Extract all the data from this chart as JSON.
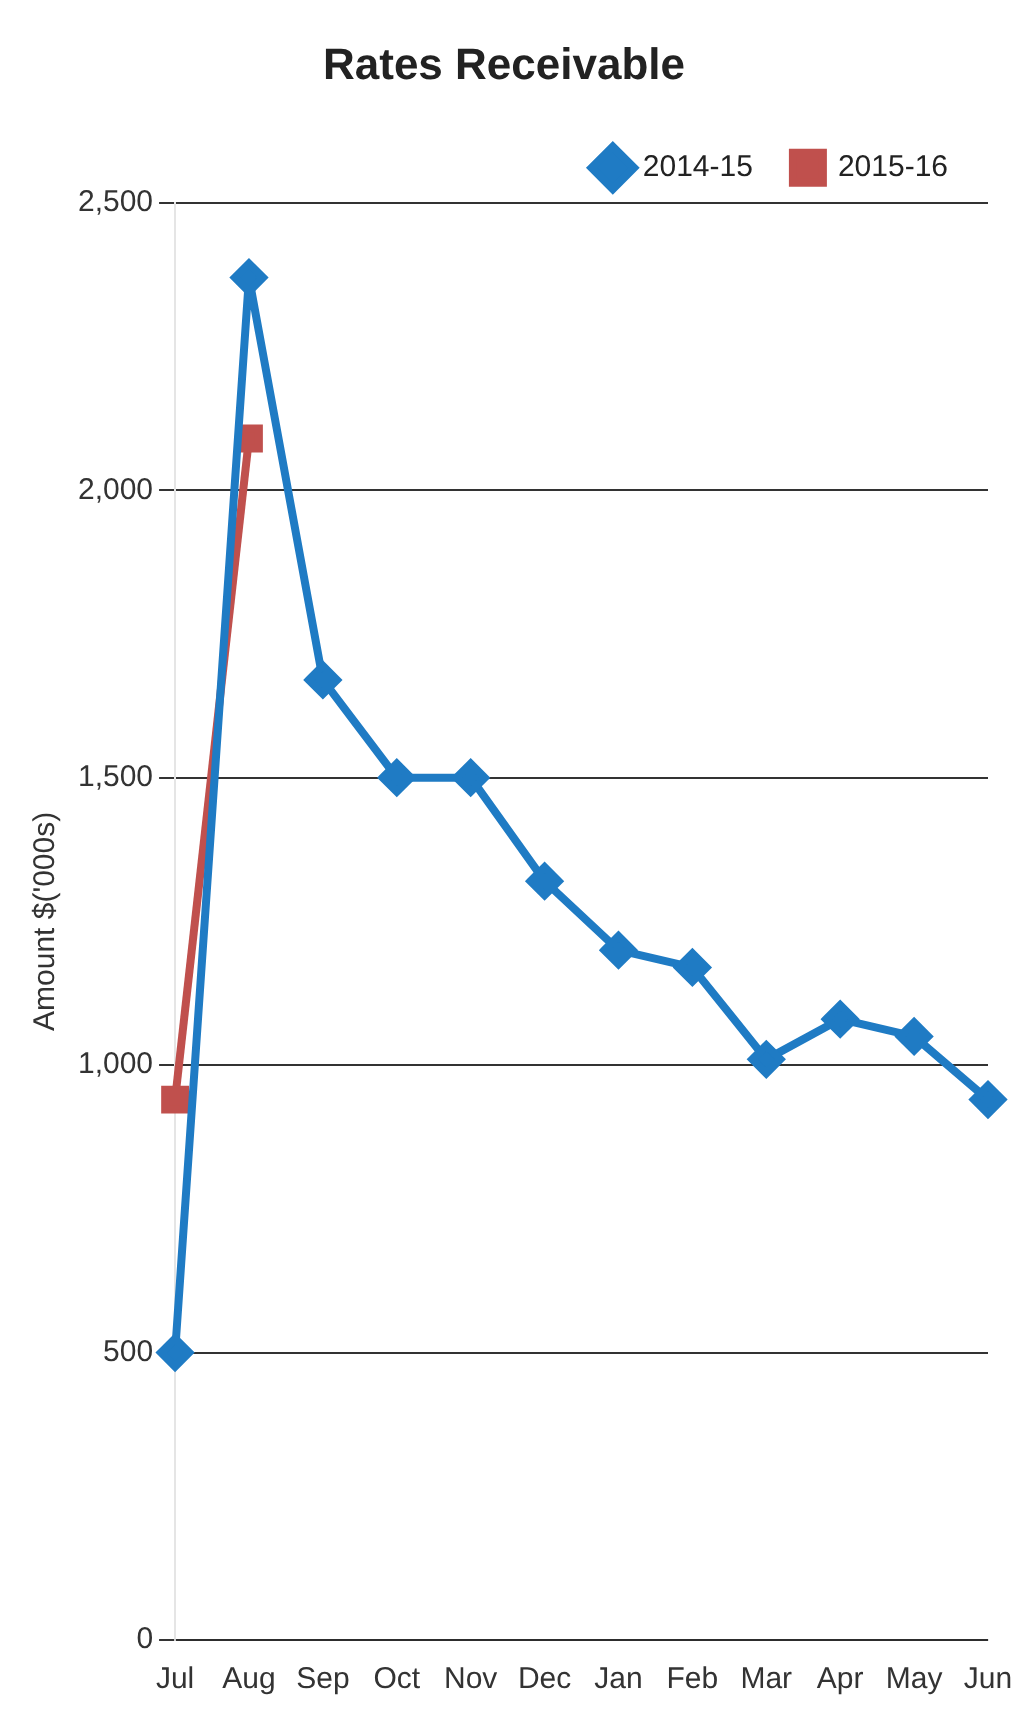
{
  "chart_data": {
    "type": "line",
    "title": "Rates Receivable",
    "ylabel": "Amount $('000s)",
    "categories": [
      "Jul",
      "Aug",
      "Sep",
      "Oct",
      "Nov",
      "Dec",
      "Jan",
      "Feb",
      "Mar",
      "Apr",
      "May",
      "Jun"
    ],
    "series": [
      {
        "name": "2014-15",
        "color": "#1f7bc4",
        "marker": "diamond",
        "values": [
          500,
          2370,
          1670,
          1500,
          1500,
          1320,
          1200,
          1170,
          1010,
          1080,
          1050,
          940
        ]
      },
      {
        "name": "2015-16",
        "color": "#c0504d",
        "marker": "square",
        "values": [
          940,
          2090,
          null,
          null,
          null,
          null,
          null,
          null,
          null,
          null,
          null,
          null
        ]
      }
    ],
    "ylim": [
      0,
      2500
    ],
    "yticks": [
      {
        "value": 0,
        "label": "0"
      },
      {
        "value": 500,
        "label": "500"
      },
      {
        "value": 1000,
        "label": "1,000"
      },
      {
        "value": 1500,
        "label": "1,500"
      },
      {
        "value": 2000,
        "label": "2,000"
      },
      {
        "value": 2500,
        "label": "2,500"
      }
    ],
    "grid": "y",
    "legend": "top right",
    "line_style": "solid"
  }
}
